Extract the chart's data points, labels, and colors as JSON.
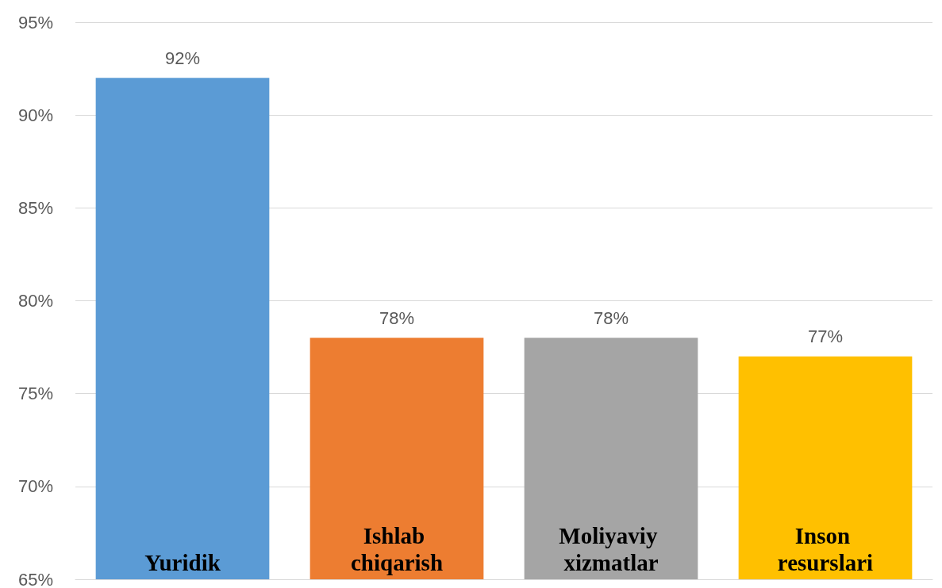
{
  "chart_data": {
    "type": "bar",
    "categories": [
      "Yuridik",
      "Ishlab chiqarish",
      "Moliyaviy xizmatlar",
      "Inson resurslari"
    ],
    "values": [
      92,
      78,
      78,
      77
    ],
    "colors": [
      "#5b9bd5",
      "#ed7d31",
      "#a5a5a5",
      "#ffc000"
    ],
    "value_labels": [
      "92%",
      "78%",
      "78%",
      "77%"
    ],
    "ylim": [
      65,
      95
    ],
    "yticks": [
      {
        "value": 65,
        "label": "65%"
      },
      {
        "value": 70,
        "label": "70%"
      },
      {
        "value": 75,
        "label": "75%"
      },
      {
        "value": 80,
        "label": "80%"
      },
      {
        "value": 85,
        "label": "85%"
      },
      {
        "value": 90,
        "label": "90%"
      },
      {
        "value": 95,
        "label": "95%"
      }
    ],
    "grid": "y"
  }
}
